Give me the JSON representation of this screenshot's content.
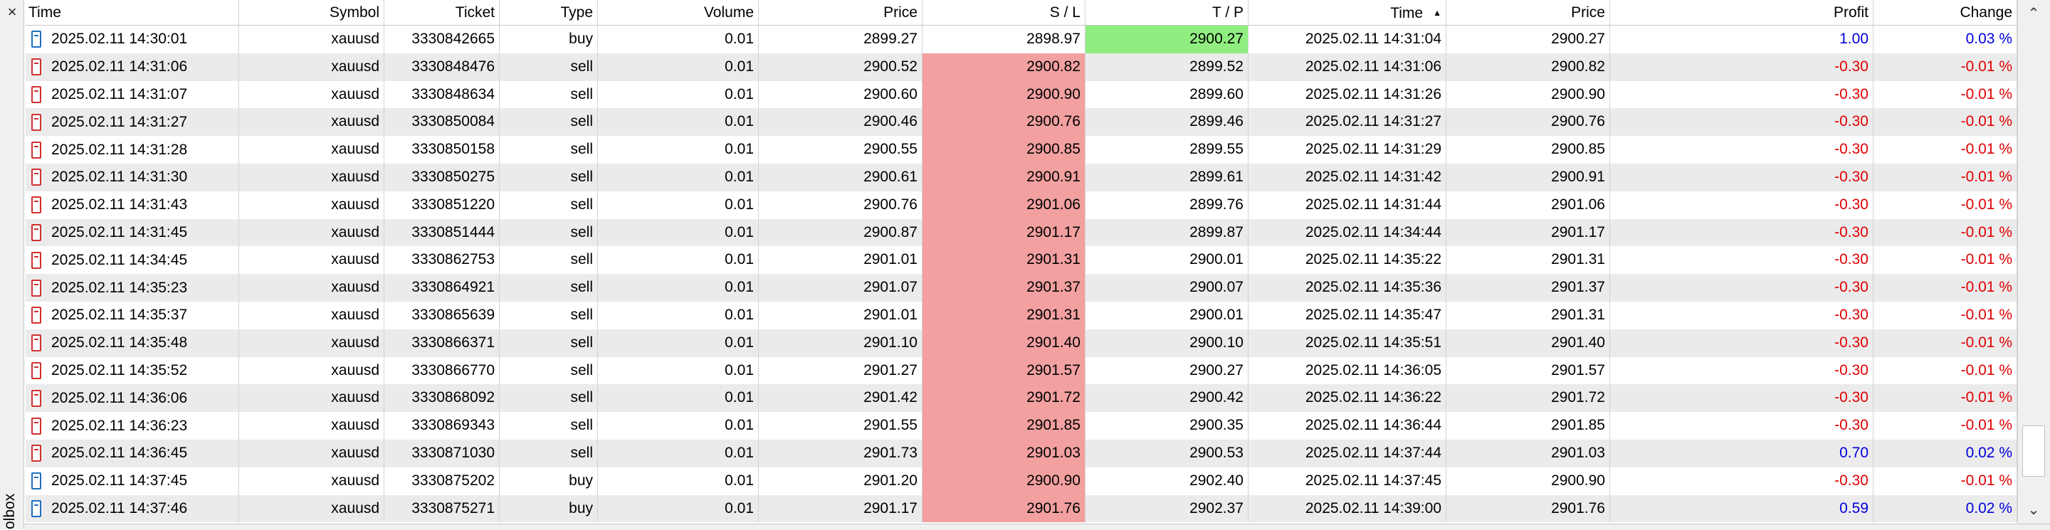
{
  "window": {
    "close_glyph": "×",
    "toolbox_label": "olbox"
  },
  "colors": {
    "sl_hit": "#f2a0a0",
    "tp_hit": "#90ee80",
    "loss": "#e00000",
    "gain": "#0000e0"
  },
  "columns": {
    "time": "Time",
    "symbol": "Symbol",
    "ticket": "Ticket",
    "type": "Type",
    "volume": "Volume",
    "price": "Price",
    "sl": "S / L",
    "tp": "T / P",
    "close_time": "Time",
    "close_price": "Price",
    "profit": "Profit",
    "change": "Change"
  },
  "rows": [
    {
      "time": "2025.02.11 14:30:01",
      "symbol": "xauusd",
      "ticket": "3330842665",
      "type": "buy",
      "volume": "0.01",
      "price": "2899.27",
      "sl": "2898.97",
      "tp": "2900.27",
      "close_time": "2025.02.11 14:31:04",
      "close_price": "2900.27",
      "profit": "1.00",
      "change": "0.03 %",
      "hit": "tp",
      "icon": "buy",
      "sign": "pos"
    },
    {
      "time": "2025.02.11 14:31:06",
      "symbol": "xauusd",
      "ticket": "3330848476",
      "type": "sell",
      "volume": "0.01",
      "price": "2900.52",
      "sl": "2900.82",
      "tp": "2899.52",
      "close_time": "2025.02.11 14:31:06",
      "close_price": "2900.82",
      "profit": "-0.30",
      "change": "-0.01 %",
      "hit": "sl",
      "icon": "sell",
      "sign": "neg"
    },
    {
      "time": "2025.02.11 14:31:07",
      "symbol": "xauusd",
      "ticket": "3330848634",
      "type": "sell",
      "volume": "0.01",
      "price": "2900.60",
      "sl": "2900.90",
      "tp": "2899.60",
      "close_time": "2025.02.11 14:31:26",
      "close_price": "2900.90",
      "profit": "-0.30",
      "change": "-0.01 %",
      "hit": "sl",
      "icon": "sell",
      "sign": "neg"
    },
    {
      "time": "2025.02.11 14:31:27",
      "symbol": "xauusd",
      "ticket": "3330850084",
      "type": "sell",
      "volume": "0.01",
      "price": "2900.46",
      "sl": "2900.76",
      "tp": "2899.46",
      "close_time": "2025.02.11 14:31:27",
      "close_price": "2900.76",
      "profit": "-0.30",
      "change": "-0.01 %",
      "hit": "sl",
      "icon": "sell",
      "sign": "neg"
    },
    {
      "time": "2025.02.11 14:31:28",
      "symbol": "xauusd",
      "ticket": "3330850158",
      "type": "sell",
      "volume": "0.01",
      "price": "2900.55",
      "sl": "2900.85",
      "tp": "2899.55",
      "close_time": "2025.02.11 14:31:29",
      "close_price": "2900.85",
      "profit": "-0.30",
      "change": "-0.01 %",
      "hit": "sl",
      "icon": "sell",
      "sign": "neg"
    },
    {
      "time": "2025.02.11 14:31:30",
      "symbol": "xauusd",
      "ticket": "3330850275",
      "type": "sell",
      "volume": "0.01",
      "price": "2900.61",
      "sl": "2900.91",
      "tp": "2899.61",
      "close_time": "2025.02.11 14:31:42",
      "close_price": "2900.91",
      "profit": "-0.30",
      "change": "-0.01 %",
      "hit": "sl",
      "icon": "sell",
      "sign": "neg"
    },
    {
      "time": "2025.02.11 14:31:43",
      "symbol": "xauusd",
      "ticket": "3330851220",
      "type": "sell",
      "volume": "0.01",
      "price": "2900.76",
      "sl": "2901.06",
      "tp": "2899.76",
      "close_time": "2025.02.11 14:31:44",
      "close_price": "2901.06",
      "profit": "-0.30",
      "change": "-0.01 %",
      "hit": "sl",
      "icon": "sell",
      "sign": "neg"
    },
    {
      "time": "2025.02.11 14:31:45",
      "symbol": "xauusd",
      "ticket": "3330851444",
      "type": "sell",
      "volume": "0.01",
      "price": "2900.87",
      "sl": "2901.17",
      "tp": "2899.87",
      "close_time": "2025.02.11 14:34:44",
      "close_price": "2901.17",
      "profit": "-0.30",
      "change": "-0.01 %",
      "hit": "sl",
      "icon": "sell",
      "sign": "neg"
    },
    {
      "time": "2025.02.11 14:34:45",
      "symbol": "xauusd",
      "ticket": "3330862753",
      "type": "sell",
      "volume": "0.01",
      "price": "2901.01",
      "sl": "2901.31",
      "tp": "2900.01",
      "close_time": "2025.02.11 14:35:22",
      "close_price": "2901.31",
      "profit": "-0.30",
      "change": "-0.01 %",
      "hit": "sl",
      "icon": "sell",
      "sign": "neg"
    },
    {
      "time": "2025.02.11 14:35:23",
      "symbol": "xauusd",
      "ticket": "3330864921",
      "type": "sell",
      "volume": "0.01",
      "price": "2901.07",
      "sl": "2901.37",
      "tp": "2900.07",
      "close_time": "2025.02.11 14:35:36",
      "close_price": "2901.37",
      "profit": "-0.30",
      "change": "-0.01 %",
      "hit": "sl",
      "icon": "sell",
      "sign": "neg"
    },
    {
      "time": "2025.02.11 14:35:37",
      "symbol": "xauusd",
      "ticket": "3330865639",
      "type": "sell",
      "volume": "0.01",
      "price": "2901.01",
      "sl": "2901.31",
      "tp": "2900.01",
      "close_time": "2025.02.11 14:35:47",
      "close_price": "2901.31",
      "profit": "-0.30",
      "change": "-0.01 %",
      "hit": "sl",
      "icon": "sell",
      "sign": "neg"
    },
    {
      "time": "2025.02.11 14:35:48",
      "symbol": "xauusd",
      "ticket": "3330866371",
      "type": "sell",
      "volume": "0.01",
      "price": "2901.10",
      "sl": "2901.40",
      "tp": "2900.10",
      "close_time": "2025.02.11 14:35:51",
      "close_price": "2901.40",
      "profit": "-0.30",
      "change": "-0.01 %",
      "hit": "sl",
      "icon": "sell",
      "sign": "neg"
    },
    {
      "time": "2025.02.11 14:35:52",
      "symbol": "xauusd",
      "ticket": "3330866770",
      "type": "sell",
      "volume": "0.01",
      "price": "2901.27",
      "sl": "2901.57",
      "tp": "2900.27",
      "close_time": "2025.02.11 14:36:05",
      "close_price": "2901.57",
      "profit": "-0.30",
      "change": "-0.01 %",
      "hit": "sl",
      "icon": "sell",
      "sign": "neg"
    },
    {
      "time": "2025.02.11 14:36:06",
      "symbol": "xauusd",
      "ticket": "3330868092",
      "type": "sell",
      "volume": "0.01",
      "price": "2901.42",
      "sl": "2901.72",
      "tp": "2900.42",
      "close_time": "2025.02.11 14:36:22",
      "close_price": "2901.72",
      "profit": "-0.30",
      "change": "-0.01 %",
      "hit": "sl",
      "icon": "sell",
      "sign": "neg"
    },
    {
      "time": "2025.02.11 14:36:23",
      "symbol": "xauusd",
      "ticket": "3330869343",
      "type": "sell",
      "volume": "0.01",
      "price": "2901.55",
      "sl": "2901.85",
      "tp": "2900.35",
      "close_time": "2025.02.11 14:36:44",
      "close_price": "2901.85",
      "profit": "-0.30",
      "change": "-0.01 %",
      "hit": "sl",
      "icon": "sell",
      "sign": "neg"
    },
    {
      "time": "2025.02.11 14:36:45",
      "symbol": "xauusd",
      "ticket": "3330871030",
      "type": "sell",
      "volume": "0.01",
      "price": "2901.73",
      "sl": "2901.03",
      "tp": "2900.53",
      "close_time": "2025.02.11 14:37:44",
      "close_price": "2901.03",
      "profit": "0.70",
      "change": "0.02 %",
      "hit": "sl",
      "icon": "sell",
      "sign": "pos"
    },
    {
      "time": "2025.02.11 14:37:45",
      "symbol": "xauusd",
      "ticket": "3330875202",
      "type": "buy",
      "volume": "0.01",
      "price": "2901.20",
      "sl": "2900.90",
      "tp": "2902.40",
      "close_time": "2025.02.11 14:37:45",
      "close_price": "2900.90",
      "profit": "-0.30",
      "change": "-0.01 %",
      "hit": "sl",
      "icon": "buy",
      "sign": "neg"
    },
    {
      "time": "2025.02.11 14:37:46",
      "symbol": "xauusd",
      "ticket": "3330875271",
      "type": "buy",
      "volume": "0.01",
      "price": "2901.17",
      "sl": "2901.76",
      "tp": "2902.37",
      "close_time": "2025.02.11 14:39:00",
      "close_price": "2901.76",
      "profit": "0.59",
      "change": "0.02 %",
      "hit": "sl",
      "icon": "buy",
      "sign": "pos"
    }
  ],
  "scroll": {
    "up_glyph": "⌃",
    "down_glyph": "⌄"
  },
  "icons": {
    "order": "order-document-icon",
    "sort": "sort-ascending-icon",
    "close": "close-icon"
  }
}
